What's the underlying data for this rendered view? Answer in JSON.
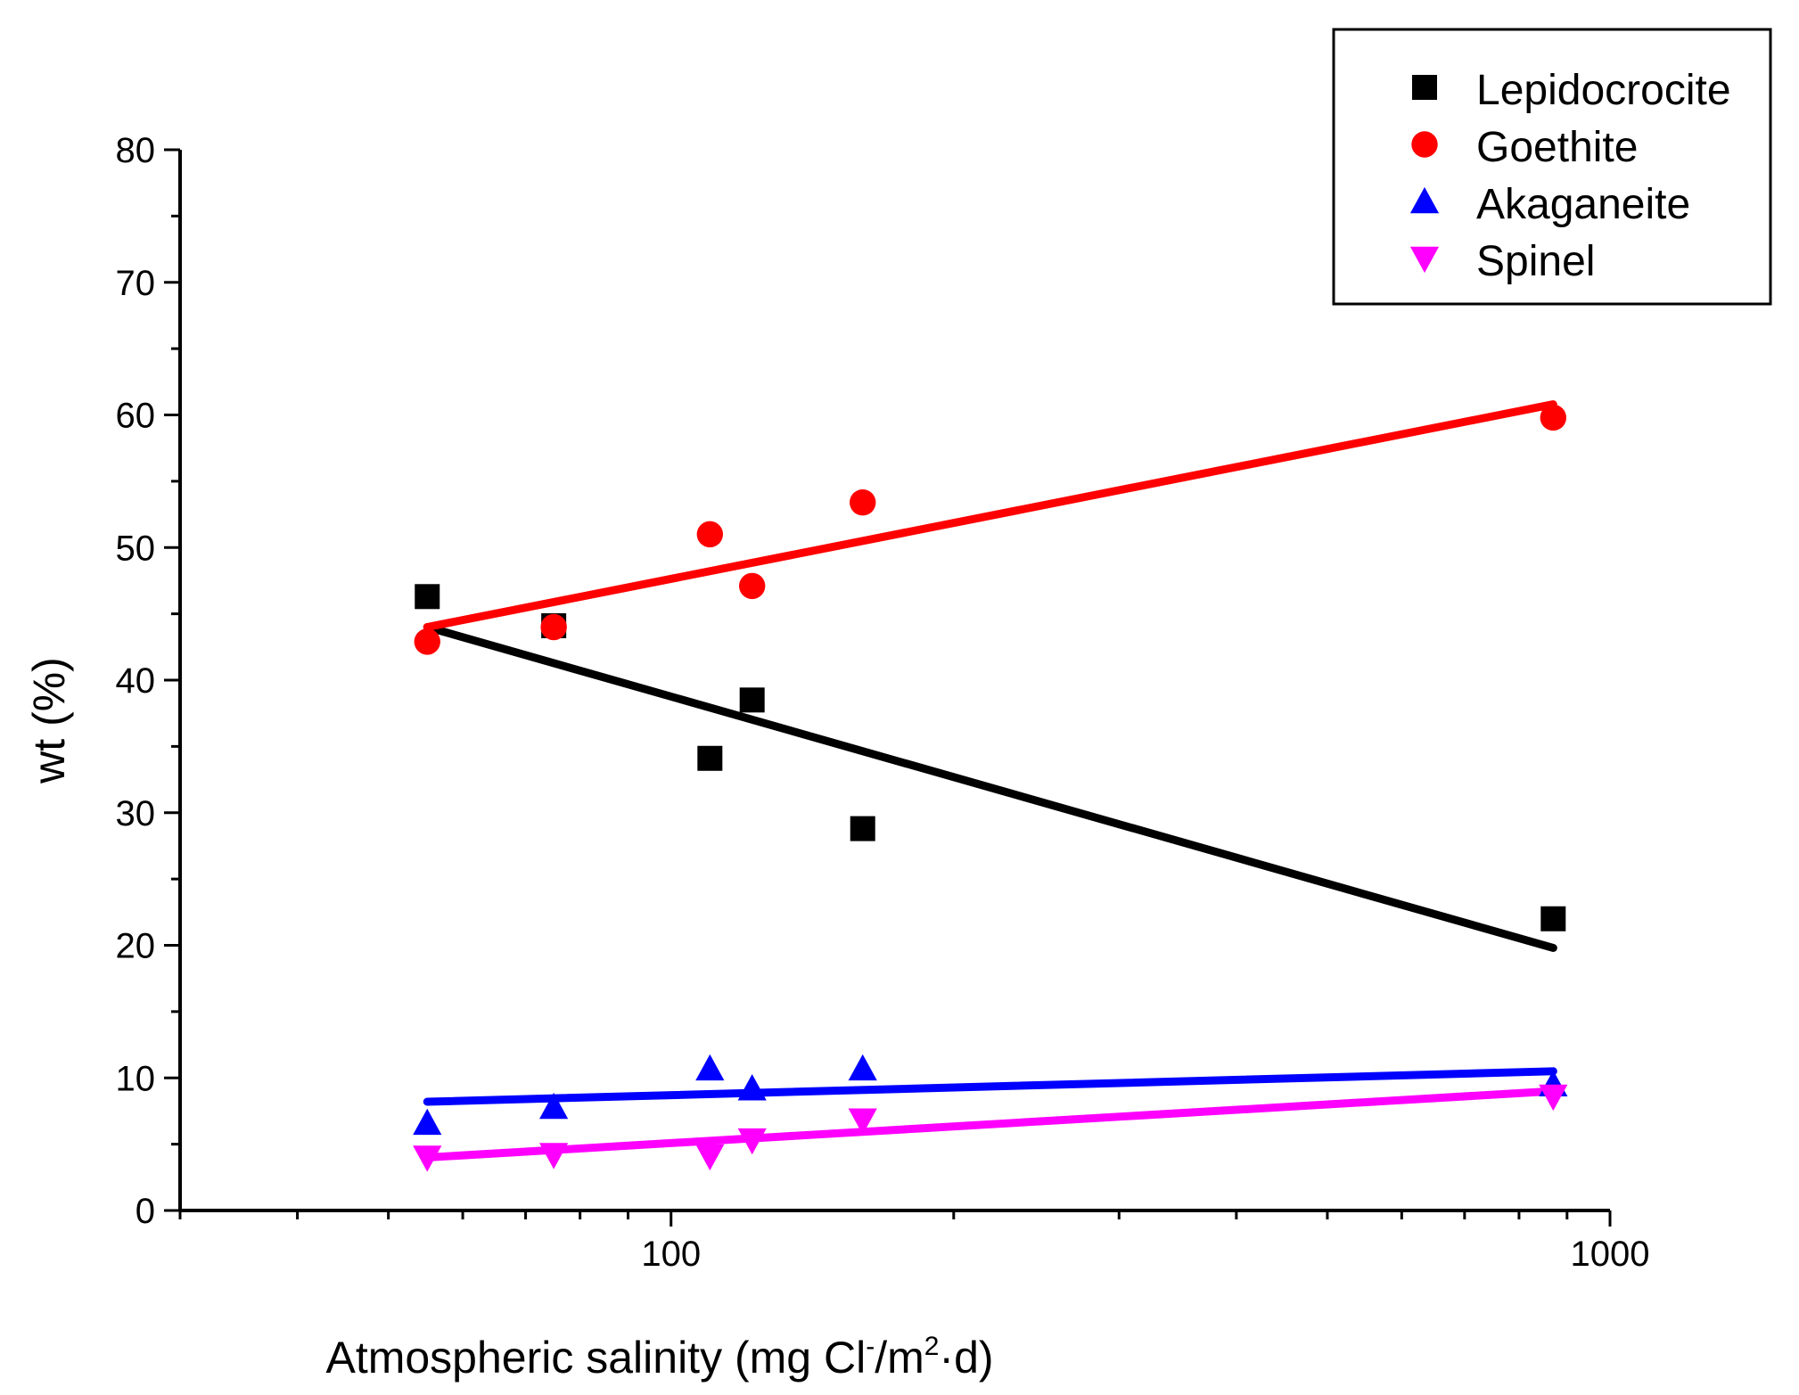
{
  "chart_data": {
    "type": "scatter",
    "title": "",
    "xlabel_parts": {
      "main": "Atmospheric salinity (mg Cl",
      "sup1": "-",
      "mid": "/m",
      "sup2": "2",
      "end": "·d)"
    },
    "ylabel": "wt (%)",
    "xscale": "log",
    "xlim": [
      30,
      1000
    ],
    "ylim": [
      0,
      80
    ],
    "x_ticks": [
      100,
      1000
    ],
    "x_tick_labels": [
      "100",
      "1000"
    ],
    "y_ticks": [
      0,
      10,
      20,
      30,
      40,
      50,
      60,
      70,
      80
    ],
    "y_tick_labels": [
      "0",
      "10",
      "20",
      "30",
      "40",
      "50",
      "60",
      "70",
      "80"
    ],
    "legend_position": "top-right",
    "series": [
      {
        "name": "Lepidocrocite",
        "color": "#000000",
        "marker": "square",
        "x": [
          55,
          75,
          110,
          122,
          160,
          870
        ],
        "y": [
          46.3,
          44.1,
          34.1,
          38.5,
          28.8,
          22.0
        ],
        "fit": {
          "x": [
            55,
            870
          ],
          "y": [
            44.0,
            19.8
          ]
        }
      },
      {
        "name": "Goethite",
        "color": "#ff0000",
        "marker": "circle",
        "x": [
          55,
          75,
          110,
          122,
          160,
          870
        ],
        "y": [
          42.9,
          44.0,
          51.0,
          47.1,
          53.4,
          59.8
        ],
        "fit": {
          "x": [
            55,
            870
          ],
          "y": [
            44.0,
            60.8
          ]
        }
      },
      {
        "name": "Akaganeite",
        "color": "#0000ff",
        "marker": "triangle-up",
        "x": [
          55,
          75,
          110,
          122,
          160,
          870
        ],
        "y": [
          6.6,
          7.8,
          10.7,
          9.2,
          10.7,
          9.5
        ],
        "fit": {
          "x": [
            55,
            870
          ],
          "y": [
            8.2,
            10.5
          ]
        }
      },
      {
        "name": "Spinel",
        "color": "#ff00ff",
        "marker": "triangle-down",
        "x": [
          55,
          75,
          110,
          122,
          160,
          870
        ],
        "y": [
          4.0,
          4.2,
          4.1,
          5.3,
          6.8,
          8.6
        ],
        "fit": {
          "x": [
            55,
            870
          ],
          "y": [
            4.0,
            9.0
          ]
        }
      }
    ]
  }
}
